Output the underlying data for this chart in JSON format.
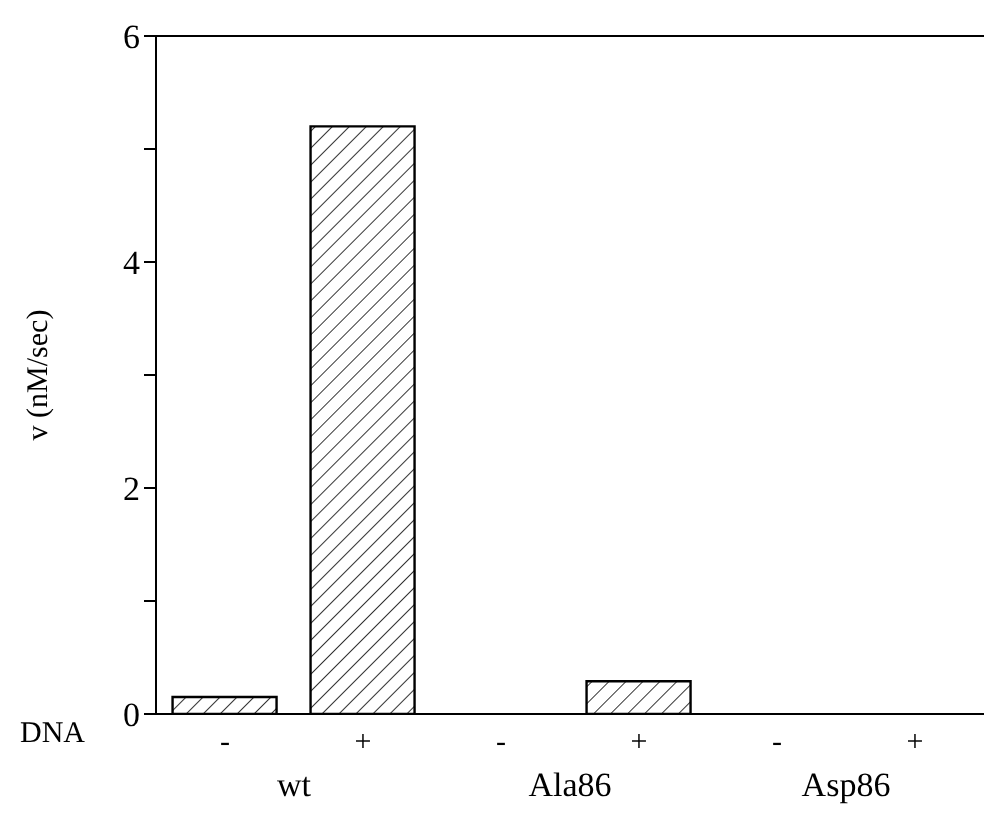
{
  "chart_data": {
    "type": "bar",
    "ylabel": "v (nM/sec)",
    "categories": [
      "-",
      "+",
      "-",
      "+",
      "-",
      "+"
    ],
    "values": [
      0.15,
      5.2,
      0,
      0.29,
      0,
      0
    ],
    "color": "#000000",
    "ylim": [
      0,
      6
    ],
    "yticks": [
      0,
      {
        "value": 1,
        "label": null
      },
      2,
      {
        "value": 3,
        "label": null
      },
      4,
      {
        "value": 5,
        "label": null
      },
      6
    ],
    "annotations": [
      "DNA",
      "wt",
      "Ala86",
      "Asp86"
    ],
    "grid": false,
    "legend": false
  }
}
